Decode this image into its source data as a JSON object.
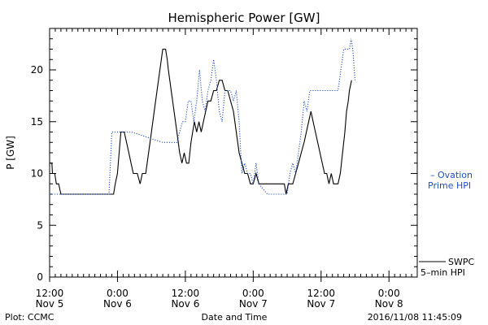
{
  "chart_data": {
    "type": "line",
    "title": "Hemispheric Power [GW]",
    "ylabel": "P [GW]",
    "xlabel": "Date and Time",
    "ylim": [
      0,
      24
    ],
    "y_ticks": [
      0,
      5,
      10,
      15,
      20
    ],
    "x_range_hours": [
      0,
      65
    ],
    "x_ticks": [
      {
        "h": 0,
        "time": "12:00",
        "day": "Nov 5"
      },
      {
        "h": 12,
        "time": "0:00",
        "day": "Nov 6"
      },
      {
        "h": 24,
        "time": "12:00",
        "day": "Nov 6"
      },
      {
        "h": 36,
        "time": "0:00",
        "day": "Nov 7"
      },
      {
        "h": 48,
        "time": "12:00",
        "day": "Nov 7"
      },
      {
        "h": 60,
        "time": "0:00",
        "day": "Nov 8"
      }
    ],
    "plot_credit": "Plot: CCMC",
    "timestamp": "2016/11/08 11:45:09",
    "series": [
      {
        "name": "SWPC 5-min HPI",
        "legend_lines": [
          "SWPC",
          "5–min HPI"
        ],
        "color": "#000000",
        "style": "solid",
        "points": [
          [
            0,
            11
          ],
          [
            0.4,
            11
          ],
          [
            0.5,
            10
          ],
          [
            0.9,
            10
          ],
          [
            1.2,
            9
          ],
          [
            1.6,
            9
          ],
          [
            2,
            8
          ],
          [
            4,
            8
          ],
          [
            6,
            8
          ],
          [
            8,
            8
          ],
          [
            10,
            8
          ],
          [
            11.3,
            8
          ],
          [
            11.6,
            9
          ],
          [
            12,
            10
          ],
          [
            12.3,
            12
          ],
          [
            12.6,
            14
          ],
          [
            13.2,
            14
          ],
          [
            13.6,
            13
          ],
          [
            14,
            12
          ],
          [
            14.4,
            11
          ],
          [
            14.8,
            10
          ],
          [
            15.5,
            10
          ],
          [
            16,
            9
          ],
          [
            16.4,
            10
          ],
          [
            17,
            10
          ],
          [
            17.5,
            12
          ],
          [
            18,
            14
          ],
          [
            18.5,
            16
          ],
          [
            19,
            18
          ],
          [
            19.5,
            20
          ],
          [
            20,
            22
          ],
          [
            20.5,
            22
          ],
          [
            20.8,
            21
          ],
          [
            21,
            20
          ],
          [
            21.5,
            18
          ],
          [
            22,
            16
          ],
          [
            22.5,
            14
          ],
          [
            23,
            12
          ],
          [
            23.4,
            11
          ],
          [
            23.8,
            12
          ],
          [
            24.2,
            11
          ],
          [
            24.6,
            11
          ],
          [
            25,
            13
          ],
          [
            25.3,
            14
          ],
          [
            25.6,
            15
          ],
          [
            26,
            14
          ],
          [
            26.4,
            15
          ],
          [
            26.8,
            14
          ],
          [
            27.2,
            15
          ],
          [
            27.6,
            16
          ],
          [
            28,
            17
          ],
          [
            28.5,
            17
          ],
          [
            29,
            18
          ],
          [
            29.5,
            18
          ],
          [
            30,
            19
          ],
          [
            30.5,
            19
          ],
          [
            31,
            18
          ],
          [
            31.5,
            18
          ],
          [
            32,
            17
          ],
          [
            32.5,
            16
          ],
          [
            33,
            14
          ],
          [
            33.5,
            12
          ],
          [
            34,
            11
          ],
          [
            34.5,
            10
          ],
          [
            35,
            10
          ],
          [
            35.5,
            9
          ],
          [
            36,
            9
          ],
          [
            36.5,
            10
          ],
          [
            37,
            9
          ],
          [
            38,
            9
          ],
          [
            39,
            9
          ],
          [
            40,
            9
          ],
          [
            41,
            9
          ],
          [
            41.5,
            9
          ],
          [
            41.8,
            8
          ],
          [
            42.2,
            9
          ],
          [
            43,
            9
          ],
          [
            43.5,
            10
          ],
          [
            44,
            11
          ],
          [
            44.5,
            12
          ],
          [
            45,
            13
          ],
          [
            45.4,
            14
          ],
          [
            45.8,
            15
          ],
          [
            46.2,
            16
          ],
          [
            46.6,
            15
          ],
          [
            47,
            14
          ],
          [
            47.4,
            13
          ],
          [
            47.8,
            12
          ],
          [
            48.2,
            11
          ],
          [
            48.6,
            10
          ],
          [
            49,
            10
          ],
          [
            49.4,
            9
          ],
          [
            49.8,
            10
          ],
          [
            50.2,
            9
          ],
          [
            51,
            9
          ],
          [
            51.4,
            10
          ],
          [
            51.8,
            12
          ],
          [
            52.2,
            14
          ],
          [
            52.5,
            16
          ],
          [
            52.8,
            17
          ],
          [
            53,
            18
          ],
          [
            53.4,
            19
          ]
        ]
      },
      {
        "name": "Ovation Prime HPI",
        "legend_lines": [
          "– Ovation",
          "Prime HPI"
        ],
        "color": "#1f4fbf",
        "style": "dotted",
        "points": [
          [
            0,
            8
          ],
          [
            10,
            8
          ],
          [
            10.5,
            8
          ],
          [
            11,
            14
          ],
          [
            14,
            14
          ],
          [
            14.5,
            14
          ],
          [
            20,
            13
          ],
          [
            22.5,
            13
          ],
          [
            23,
            14
          ],
          [
            23.5,
            15
          ],
          [
            24,
            15
          ],
          [
            24.5,
            17
          ],
          [
            25,
            17
          ],
          [
            25.5,
            15
          ],
          [
            26,
            17
          ],
          [
            26.5,
            20
          ],
          [
            27,
            17
          ],
          [
            27.5,
            16
          ],
          [
            28,
            18
          ],
          [
            28.5,
            19
          ],
          [
            29,
            21
          ],
          [
            29.5,
            19
          ],
          [
            30,
            16
          ],
          [
            30.5,
            15
          ],
          [
            31,
            18
          ],
          [
            32,
            18
          ],
          [
            32.5,
            17
          ],
          [
            33,
            18
          ],
          [
            33.5,
            15
          ],
          [
            34,
            10
          ],
          [
            34.5,
            11
          ],
          [
            35,
            10
          ],
          [
            35.5,
            10
          ],
          [
            36,
            9
          ],
          [
            36.5,
            11
          ],
          [
            37,
            9
          ],
          [
            38.5,
            8
          ],
          [
            41,
            8
          ],
          [
            42,
            8
          ],
          [
            42.5,
            10
          ],
          [
            43,
            11
          ],
          [
            43.5,
            10
          ],
          [
            44,
            12
          ],
          [
            44.5,
            14
          ],
          [
            45,
            17
          ],
          [
            45.5,
            16
          ],
          [
            46,
            18
          ],
          [
            48,
            18
          ],
          [
            50,
            18
          ],
          [
            51,
            18
          ],
          [
            52,
            22
          ],
          [
            53,
            22
          ],
          [
            53.3,
            23
          ],
          [
            53.6,
            22
          ],
          [
            54,
            19
          ]
        ]
      }
    ]
  }
}
